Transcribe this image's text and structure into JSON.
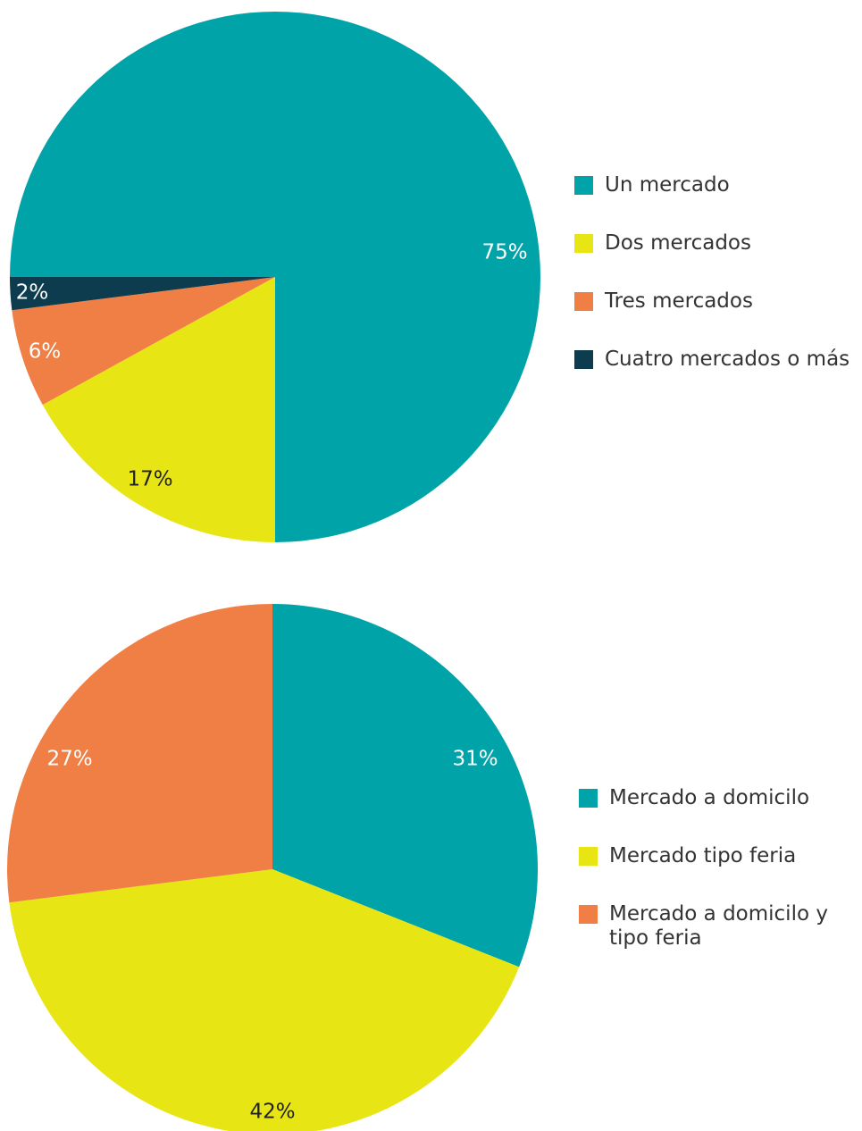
{
  "chart_data": [
    {
      "type": "pie",
      "categories": [
        "Un mercado",
        "Dos mercados",
        "Tres mercados",
        "Cuatro mercados o más"
      ],
      "values": [
        75,
        17,
        6,
        2
      ],
      "value_labels": [
        "75%",
        "17%",
        "6%",
        "2%"
      ],
      "colors": [
        "#00a3a8",
        "#e8e515",
        "#f07f45",
        "#0d3c4e"
      ]
    },
    {
      "type": "pie",
      "categories": [
        "Mercado a domicilo",
        "Mercado tipo feria",
        "Mercado a domicilo y tipo feria"
      ],
      "values": [
        31,
        42,
        27
      ],
      "value_labels": [
        "31%",
        "42%",
        "27%"
      ],
      "colors": [
        "#00a3a8",
        "#e8e515",
        "#f07f45"
      ]
    }
  ]
}
